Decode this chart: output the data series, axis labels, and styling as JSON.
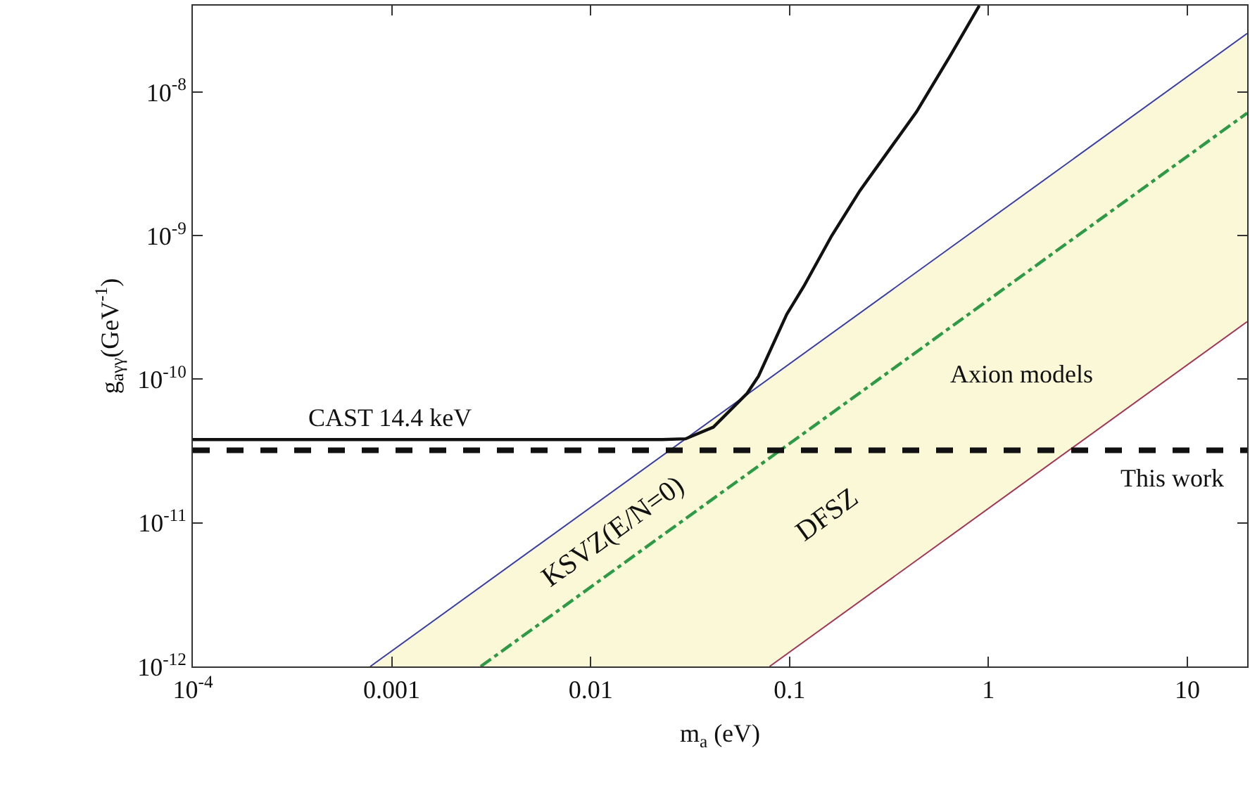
{
  "chart_data": {
    "type": "line",
    "xlabel": "m$_{a}$ (eV)",
    "ylabel": "g$_{aγγ}$(GeV$^{-1}$)",
    "log": "xy",
    "xlim": [
      0.0001,
      20
    ],
    "xticks": [
      {
        "value": 0.0001,
        "label": "10$^{-4}$"
      },
      0.001,
      0.01,
      0.1,
      1,
      10
    ],
    "ylim": [
      1e-12,
      4e-08
    ],
    "yticks": [
      {
        "value": 1e-12,
        "label": "10$^{-12}$"
      },
      {
        "value": 1e-11,
        "label": "10$^{-11}$"
      },
      {
        "value": 1e-10,
        "label": "10$^{-10}$"
      },
      {
        "value": 1e-09,
        "label": "10$^{-9}$"
      },
      {
        "value": 1e-08,
        "label": "10$^{-8}$"
      }
    ],
    "series": [
      {
        "color": "#2e9a46",
        "line_style": "dashdot",
        "x": [
          0.00078,
          0.0028,
          0.0794,
          20
        ],
        "values": [
          null,
          1e-12,
          2.83e-11,
          7.14e-09
        ],
        "lower": [
          1e-12,
          1e-12,
          1e-12,
          2.52e-10
        ],
        "upper": [
          1e-12,
          3.58e-12,
          1.02e-10,
          2.56e-08
        ]
      },
      {
        "color": "#3a3f9e",
        "line_style": "solid",
        "x": [
          0.00078,
          20
        ],
        "values": [
          1e-12,
          2.56e-08
        ]
      },
      {
        "color": "#a0365a",
        "line_style": "solid",
        "x": [
          0.0794,
          20
        ],
        "values": [
          1e-12,
          2.52e-10
        ]
      },
      {
        "color": "#111111",
        "line_style": "solid",
        "x": [
          0.0001,
          0.023,
          0.03,
          0.0414,
          0.0612,
          0.0698,
          0.0968,
          0.118,
          0.163,
          0.226,
          0.435,
          0.644,
          0.9
        ],
        "values": [
          3.8e-11,
          3.8e-11,
          3.85e-11,
          4.64e-11,
          7.98e-11,
          1.05e-10,
          2.83e-10,
          4.44e-10,
          1e-09,
          2.06e-09,
          7.29e-09,
          1.8e-08,
          4e-08
        ]
      }
    ],
    "ref_lines": [
      {
        "axis": "y",
        "value": 3.2e-11,
        "label": "This work",
        "color": "#111111",
        "line_style": "dashed"
      }
    ],
    "annotations": [
      "CAST 14.4 keV",
      "Axion models",
      "KSVZ(E/N=0)",
      "DFSZ"
    ]
  }
}
